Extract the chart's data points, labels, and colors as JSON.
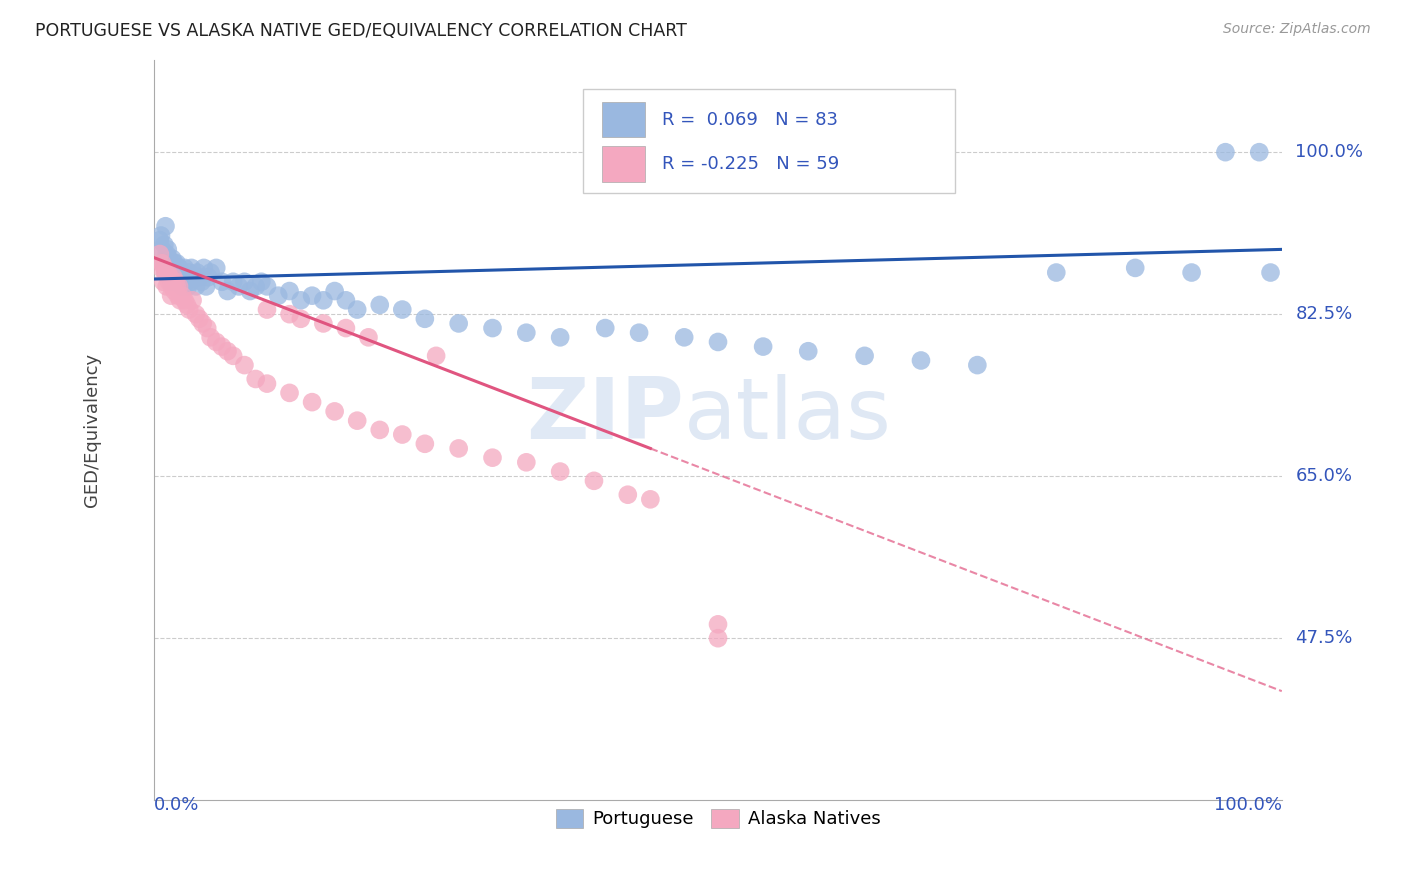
{
  "title": "PORTUGUESE VS ALASKA NATIVE GED/EQUIVALENCY CORRELATION CHART",
  "source": "Source: ZipAtlas.com",
  "ylabel": "GED/Equivalency",
  "ytick_labels": [
    "47.5%",
    "65.0%",
    "82.5%",
    "100.0%"
  ],
  "ytick_values": [
    0.475,
    0.65,
    0.825,
    1.0
  ],
  "legend_label1": "Portuguese",
  "legend_label2": "Alaska Natives",
  "R1": 0.069,
  "N1": 83,
  "R2": -0.225,
  "N2": 59,
  "blue_color": "#9ab8e0",
  "pink_color": "#f4a8c0",
  "blue_line_color": "#2255aa",
  "pink_line_color": "#e05580",
  "watermark_zip": "ZIP",
  "watermark_atlas": "atlas",
  "portuguese_x": [
    0.005,
    0.006,
    0.007,
    0.008,
    0.009,
    0.01,
    0.01,
    0.011,
    0.012,
    0.012,
    0.013,
    0.013,
    0.014,
    0.015,
    0.015,
    0.016,
    0.017,
    0.018,
    0.018,
    0.019,
    0.02,
    0.02,
    0.021,
    0.022,
    0.023,
    0.024,
    0.025,
    0.026,
    0.027,
    0.028,
    0.03,
    0.031,
    0.032,
    0.033,
    0.035,
    0.037,
    0.038,
    0.04,
    0.042,
    0.044,
    0.046,
    0.048,
    0.05,
    0.055,
    0.06,
    0.065,
    0.07,
    0.075,
    0.08,
    0.085,
    0.09,
    0.095,
    0.1,
    0.11,
    0.12,
    0.13,
    0.14,
    0.15,
    0.16,
    0.17,
    0.18,
    0.2,
    0.22,
    0.24,
    0.27,
    0.3,
    0.33,
    0.36,
    0.4,
    0.43,
    0.47,
    0.5,
    0.54,
    0.58,
    0.63,
    0.68,
    0.73,
    0.8,
    0.87,
    0.92,
    0.95,
    0.98,
    0.99
  ],
  "portuguese_y": [
    0.905,
    0.91,
    0.895,
    0.88,
    0.9,
    0.87,
    0.92,
    0.89,
    0.875,
    0.895,
    0.885,
    0.87,
    0.88,
    0.86,
    0.875,
    0.885,
    0.87,
    0.88,
    0.865,
    0.875,
    0.88,
    0.86,
    0.87,
    0.875,
    0.86,
    0.87,
    0.855,
    0.865,
    0.875,
    0.86,
    0.855,
    0.87,
    0.86,
    0.875,
    0.865,
    0.855,
    0.87,
    0.865,
    0.86,
    0.875,
    0.855,
    0.865,
    0.87,
    0.875,
    0.86,
    0.85,
    0.86,
    0.855,
    0.86,
    0.85,
    0.855,
    0.86,
    0.855,
    0.845,
    0.85,
    0.84,
    0.845,
    0.84,
    0.85,
    0.84,
    0.83,
    0.835,
    0.83,
    0.82,
    0.815,
    0.81,
    0.805,
    0.8,
    0.81,
    0.805,
    0.8,
    0.795,
    0.79,
    0.785,
    0.78,
    0.775,
    0.77,
    0.87,
    0.875,
    0.87,
    1.0,
    1.0,
    0.87
  ],
  "alaska_x": [
    0.005,
    0.006,
    0.007,
    0.008,
    0.009,
    0.01,
    0.011,
    0.012,
    0.013,
    0.014,
    0.015,
    0.016,
    0.017,
    0.018,
    0.019,
    0.02,
    0.021,
    0.022,
    0.023,
    0.025,
    0.027,
    0.029,
    0.031,
    0.034,
    0.037,
    0.04,
    0.043,
    0.047,
    0.05,
    0.055,
    0.06,
    0.065,
    0.07,
    0.08,
    0.09,
    0.1,
    0.12,
    0.14,
    0.16,
    0.18,
    0.2,
    0.22,
    0.24,
    0.27,
    0.3,
    0.33,
    0.36,
    0.39,
    0.42,
    0.44,
    0.13,
    0.15,
    0.17,
    0.19,
    0.25,
    0.1,
    0.12,
    0.5,
    0.5
  ],
  "alaska_y": [
    0.89,
    0.875,
    0.88,
    0.86,
    0.875,
    0.87,
    0.855,
    0.87,
    0.86,
    0.865,
    0.845,
    0.855,
    0.865,
    0.85,
    0.86,
    0.855,
    0.845,
    0.855,
    0.84,
    0.845,
    0.84,
    0.835,
    0.83,
    0.84,
    0.825,
    0.82,
    0.815,
    0.81,
    0.8,
    0.795,
    0.79,
    0.785,
    0.78,
    0.77,
    0.755,
    0.75,
    0.74,
    0.73,
    0.72,
    0.71,
    0.7,
    0.695,
    0.685,
    0.68,
    0.67,
    0.665,
    0.655,
    0.645,
    0.63,
    0.625,
    0.82,
    0.815,
    0.81,
    0.8,
    0.78,
    0.83,
    0.825,
    0.49,
    0.475
  ]
}
